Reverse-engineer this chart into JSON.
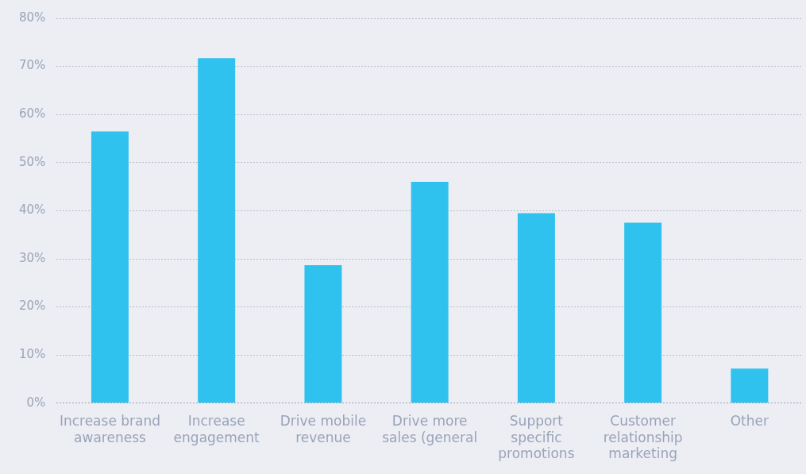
{
  "chart_data": {
    "type": "bar",
    "categories": [
      "Increase brand awareness",
      "Increase engagement",
      "Drive mobile revenue",
      "Drive more sales (general",
      "Support specific promotions",
      "Customer relationship marketing",
      "Other"
    ],
    "values": [
      56.5,
      71.7,
      28.7,
      46,
      39.5,
      37.5,
      7.2
    ],
    "color": "#30c2ee",
    "ylim": [
      0,
      80
    ],
    "yticks": [
      {
        "value": 0,
        "label": "0%"
      },
      {
        "value": 10,
        "label": "10%"
      },
      {
        "value": 20,
        "label": "20%"
      },
      {
        "value": 30,
        "label": "30%"
      },
      {
        "value": 40,
        "label": "40%"
      },
      {
        "value": 50,
        "label": "50%"
      },
      {
        "value": 60,
        "label": "60%"
      },
      {
        "value": 70,
        "label": "70%"
      },
      {
        "value": 80,
        "label": "80%"
      }
    ],
    "grid": "y"
  }
}
